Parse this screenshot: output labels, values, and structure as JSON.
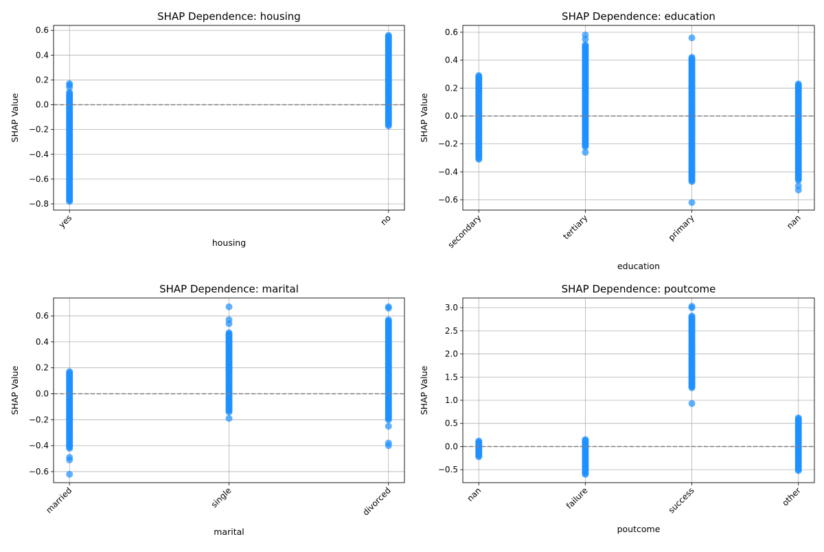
{
  "chart_data": [
    {
      "type": "scatter",
      "title": "SHAP Dependence: housing",
      "xlabel": "housing",
      "ylabel": "SHAP Value",
      "categories": [
        "yes",
        "no"
      ],
      "xlim": [
        -0.05,
        1.05
      ],
      "ylim": [
        -0.85,
        0.64
      ],
      "yticks": [
        -0.8,
        -0.6,
        -0.4,
        -0.2,
        0.0,
        0.2,
        0.4,
        0.6
      ],
      "ytick_labels": [
        "−0.8",
        "−0.6",
        "−0.4",
        "−0.2",
        "0.0",
        "0.2",
        "0.4",
        "0.6"
      ],
      "reference_line": 0,
      "grid": true,
      "series": [
        {
          "category": "yes",
          "dense_range": [
            -0.78,
            0.1
          ],
          "outliers": [
            0.14,
            0.16,
            0.17
          ]
        },
        {
          "category": "no",
          "dense_range": [
            -0.17,
            0.56
          ],
          "outliers": []
        }
      ]
    },
    {
      "type": "scatter",
      "title": "SHAP Dependence: education",
      "xlabel": "education",
      "ylabel": "SHAP Value",
      "categories": [
        "secondary",
        "tertiary",
        "primary",
        "nan"
      ],
      "xlim": [
        -0.15,
        3.15
      ],
      "ylim": [
        -0.674,
        0.649
      ],
      "yticks": [
        -0.6,
        -0.4,
        -0.2,
        0.0,
        0.2,
        0.4,
        0.6
      ],
      "ytick_labels": [
        "−0.6",
        "−0.4",
        "−0.2",
        "0.0",
        "0.2",
        "0.4",
        "0.6"
      ],
      "reference_line": 0,
      "grid": true,
      "series": [
        {
          "category": "secondary",
          "dense_range": [
            -0.31,
            0.29
          ],
          "outliers": []
        },
        {
          "category": "tertiary",
          "dense_range": [
            -0.22,
            0.51
          ],
          "outliers": [
            -0.26,
            0.55,
            0.58
          ]
        },
        {
          "category": "primary",
          "dense_range": [
            -0.47,
            0.42
          ],
          "outliers": [
            0.56,
            -0.62
          ]
        },
        {
          "category": "nan",
          "dense_range": [
            -0.46,
            0.23
          ],
          "outliers": [
            -0.5,
            -0.53
          ]
        }
      ]
    },
    {
      "type": "scatter",
      "title": "SHAP Dependence: marital",
      "xlabel": "marital",
      "ylabel": "SHAP Value",
      "categories": [
        "married",
        "single",
        "divorced"
      ],
      "xlim": [
        -0.1,
        2.1
      ],
      "ylim": [
        -0.685,
        0.738
      ],
      "yticks": [
        -0.6,
        -0.4,
        -0.2,
        0.0,
        0.2,
        0.4,
        0.6
      ],
      "ytick_labels": [
        "−0.6",
        "−0.4",
        "−0.2",
        "0.0",
        "0.2",
        "0.4",
        "0.6"
      ],
      "reference_line": 0,
      "grid": true,
      "series": [
        {
          "category": "married",
          "dense_range": [
            -0.42,
            0.17
          ],
          "outliers": [
            -0.49,
            -0.51,
            -0.62
          ]
        },
        {
          "category": "single",
          "dense_range": [
            -0.14,
            0.47
          ],
          "outliers": [
            -0.19,
            0.54,
            0.57,
            0.67
          ]
        },
        {
          "category": "divorced",
          "dense_range": [
            -0.2,
            0.57
          ],
          "outliers": [
            -0.25,
            -0.38,
            -0.4,
            0.66,
            0.67
          ]
        }
      ]
    },
    {
      "type": "scatter",
      "title": "SHAP Dependence: poutcome",
      "xlabel": "poutcome",
      "ylabel": "SHAP Value",
      "categories": [
        "nan",
        "failure",
        "success",
        "other"
      ],
      "xlim": [
        -0.15,
        3.15
      ],
      "ylim": [
        -0.78,
        3.21
      ],
      "yticks": [
        -0.5,
        0.0,
        0.5,
        1.0,
        1.5,
        2.0,
        2.5,
        3.0
      ],
      "ytick_labels": [
        "−0.5",
        "0.0",
        "0.5",
        "1.0",
        "1.5",
        "2.0",
        "2.5",
        "3.0"
      ],
      "reference_line": 0,
      "grid": true,
      "series": [
        {
          "category": "nan",
          "dense_range": [
            -0.22,
            0.12
          ],
          "outliers": []
        },
        {
          "category": "failure",
          "dense_range": [
            -0.6,
            0.15
          ],
          "outliers": []
        },
        {
          "category": "success",
          "dense_range": [
            1.27,
            2.82
          ],
          "outliers": [
            0.93,
            3.0,
            3.03
          ]
        },
        {
          "category": "other",
          "dense_range": [
            -0.52,
            0.62
          ],
          "outliers": []
        }
      ]
    }
  ],
  "colors": {
    "points": "#1e90ff",
    "grid": "#b0b0b0",
    "reference_line": "#808080"
  }
}
